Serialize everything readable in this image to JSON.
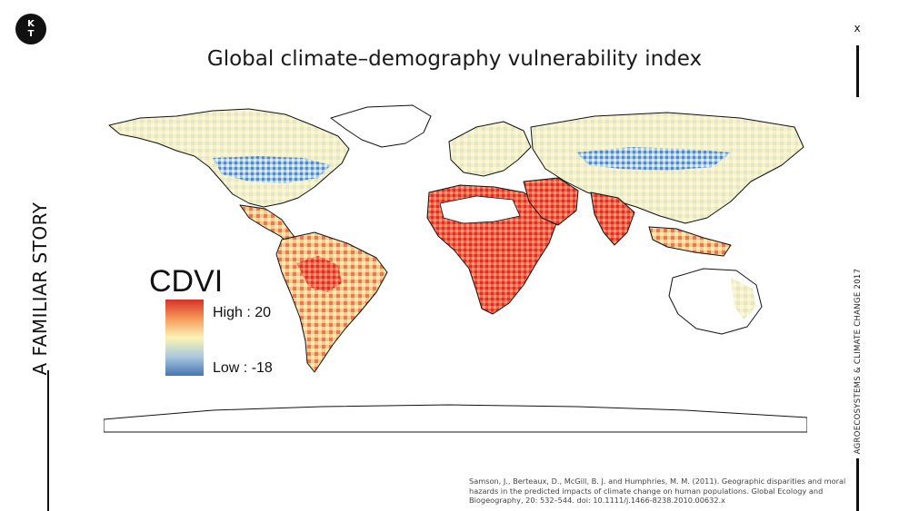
{
  "logo": {
    "line1": "K",
    "line2": "T"
  },
  "close_label": "x",
  "side_title": "A FAMILIAR STORY",
  "side_tag": "AGROECOSYSTEMS & CLIMATE CHANGE 2017",
  "title": "Global climate–demography vulnerability index",
  "legend": {
    "title": "CDVI",
    "high_label": "High : 20",
    "low_label": "Low : -18"
  },
  "colors": {
    "high": "#d73027",
    "mid": "#fbf3b5",
    "low": "#4575b4",
    "ink": "#111111"
  },
  "citation": "Samson, J., Berteaux, D., McGill, B. J. and Humphries, M. M. (2011). Geographic disparities and moral hazards in the predicted impacts of climate change on human populations. Global Ecology and Biogeography, 20: 532–544. doi: 10.1111/j.1466-8238.2010.00632.x"
}
